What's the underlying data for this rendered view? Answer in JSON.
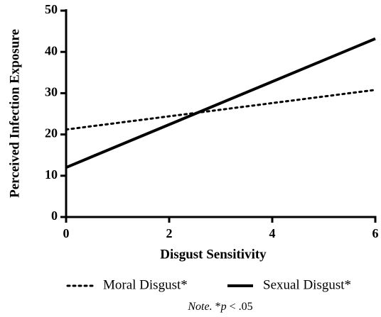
{
  "chart_data": {
    "type": "line",
    "xlabel": "Disgust Sensitivity",
    "ylabel": "Perceived Infection Exposure",
    "x": [
      0,
      6
    ],
    "series": [
      {
        "name": "Moral Disgust*",
        "color": "#000000",
        "style": "dotted",
        "values": [
          21.2,
          30.8
        ]
      },
      {
        "name": "Sexual Disgust*",
        "color": "#000000",
        "style": "solid",
        "values": [
          12,
          43.2
        ]
      }
    ],
    "xlim": [
      0,
      6
    ],
    "xticks": [
      0,
      2,
      4,
      6
    ],
    "ylim": [
      0,
      50
    ],
    "yticks": [
      0,
      10,
      20,
      30,
      40,
      50
    ],
    "grid": false,
    "legend": "bottom",
    "note": [
      "Note.",
      " *",
      "p",
      " < .05"
    ]
  }
}
